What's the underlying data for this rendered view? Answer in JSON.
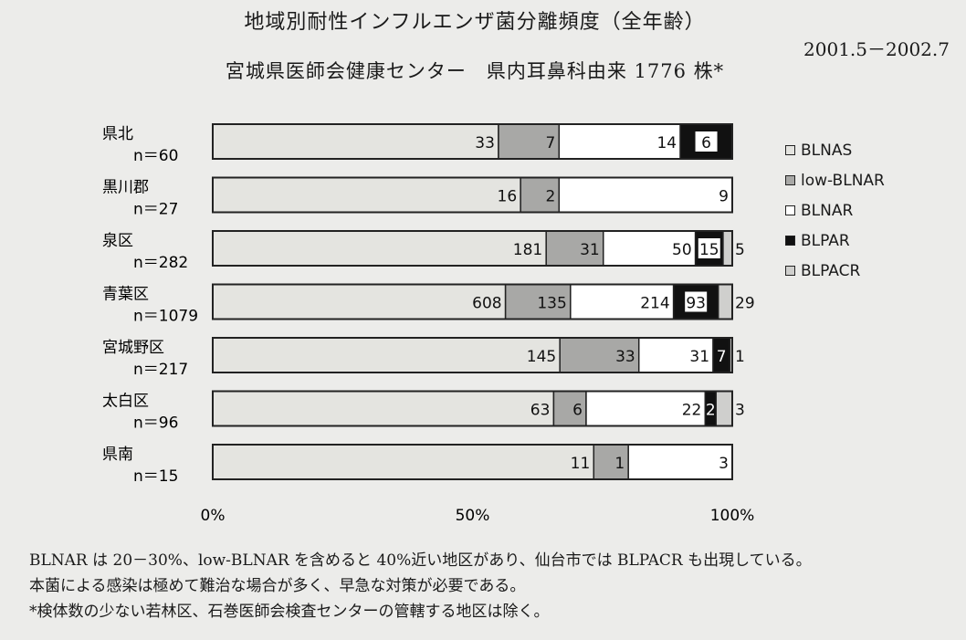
{
  "title": "地域別耐性インフルエンザ菌分離頻度（全年齢）",
  "date_range": "2001.5－2002.7",
  "subtitle": "宮城県医師会健康センター　県内耳鼻科由来 1776 株*",
  "colors": {
    "BLNAS": "#e4e4e0",
    "low-BLNAR": "#a8a8a6",
    "BLNAR": "#ffffff",
    "BLPAR": "#111111",
    "BLPACR": "#cfcfcd"
  },
  "chart_data": {
    "type": "bar",
    "orientation": "horizontal",
    "stacked": "percent",
    "categories": [
      "県北",
      "黒川郡",
      "泉区",
      "青葉区",
      "宮城野区",
      "太白区",
      "県南"
    ],
    "category_counts": [
      "n＝60",
      "n＝27",
      "n＝282",
      "n＝1079",
      "n＝217",
      "n＝96",
      "n＝15"
    ],
    "series": [
      {
        "name": "BLNAS",
        "values": [
          33,
          16,
          181,
          608,
          145,
          63,
          11
        ]
      },
      {
        "name": "low-BLNAR",
        "values": [
          7,
          2,
          31,
          135,
          33,
          6,
          1
        ]
      },
      {
        "name": "BLNAR",
        "values": [
          14,
          9,
          50,
          214,
          31,
          22,
          3
        ]
      },
      {
        "name": "BLPAR",
        "values": [
          6,
          0,
          15,
          93,
          7,
          2,
          0
        ]
      },
      {
        "name": "BLPACR",
        "values": [
          0,
          0,
          5,
          29,
          1,
          3,
          0
        ]
      }
    ],
    "xticks": [
      "0%",
      "50%",
      "100%"
    ],
    "xlim": [
      0,
      100
    ],
    "legend_position": "right"
  },
  "notes": [
    "BLNAR は 20－30%、low-BLNAR を含めると 40%近い地区があり、仙台市では BLPACR も出現している。",
    "本菌による感染は極めて難治な場合が多く、早急な対策が必要である。",
    "*検体数の少ない若林区、石巻医師会検査センターの管轄する地区は除く。"
  ]
}
